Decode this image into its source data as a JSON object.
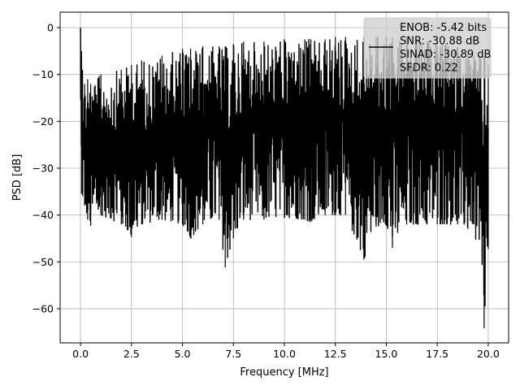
{
  "chart_data": {
    "type": "line",
    "title": "",
    "xlabel": "Frequency [MHz]",
    "ylabel": "PSD [dB]",
    "xlim": [
      -1.0,
      21.0
    ],
    "ylim": [
      -67.3,
      3.3
    ],
    "xticks": [
      0.0,
      2.5,
      5.0,
      7.5,
      10.0,
      12.5,
      15.0,
      17.5,
      20.0
    ],
    "xtick_labels": [
      "0.0",
      "2.5",
      "5.0",
      "7.5",
      "10.0",
      "12.5",
      "15.0",
      "17.5",
      "20.0"
    ],
    "yticks": [
      0,
      -10,
      -20,
      -30,
      -40,
      -50,
      -60
    ],
    "ytick_labels": [
      "0",
      "−10",
      "−20",
      "−30",
      "−40",
      "−50",
      "−60"
    ],
    "grid": true,
    "legend_position": "top-right",
    "legend_entries": [
      "ENOB: -5.42 bits",
      "SNR: -30.88 dB",
      "SINAD: -30.89 dB",
      "SFDR: 0.22"
    ],
    "series": [
      {
        "color": "#000000",
        "x": [
          0.0,
          0.05,
          0.1,
          0.2,
          0.35,
          0.5,
          1.0,
          2.0,
          2.5,
          3.0,
          4.0,
          5.0,
          5.4,
          6.0,
          6.8,
          7.1,
          7.5,
          8.0,
          9.0,
          10.0,
          11.0,
          11.3,
          12.0,
          12.5,
          13.0,
          13.9,
          14.5,
          15.0,
          15.3,
          16.0,
          16.5,
          17.0,
          17.5,
          18.5,
          19.0,
          19.3,
          19.8,
          20.0
        ],
        "max": [
          0.0,
          -5,
          -9,
          -12,
          -11,
          -12,
          -10,
          -9,
          -8,
          -7,
          -6,
          -4.5,
          -4.5,
          -4,
          -4,
          -4,
          -3.5,
          -3,
          -3,
          -2.5,
          -2.5,
          -2.5,
          -2.5,
          -2,
          -2,
          -2,
          -2,
          -2,
          -2,
          -2,
          -2.5,
          -3,
          -3,
          -4,
          -5,
          -6,
          -6,
          -8
        ],
        "min": [
          -15,
          -35.5,
          -36,
          -38,
          -41,
          -42.3,
          -40,
          -42,
          -44.7,
          -42,
          -41,
          -42,
          -45,
          -42,
          -41,
          -51.2,
          -45,
          -41,
          -41,
          -40.5,
          -41,
          -41.5,
          -40,
          -40,
          -40,
          -49.5,
          -42.5,
          -42,
          -47,
          -42,
          -42,
          -42,
          -42,
          -42,
          -43,
          -42,
          -64.2,
          -47.3
        ]
      }
    ]
  }
}
